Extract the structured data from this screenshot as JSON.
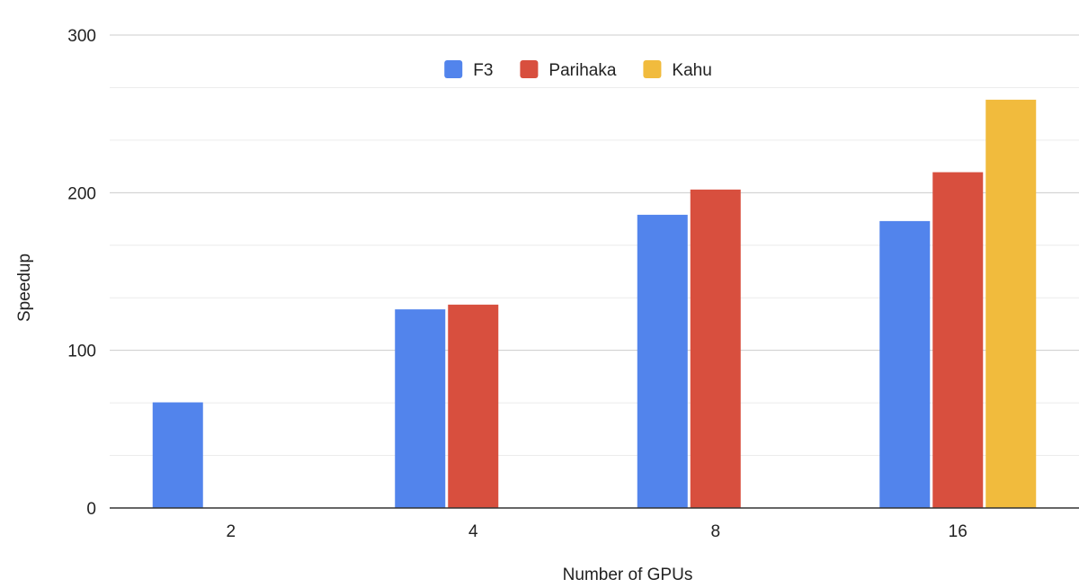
{
  "chart_data": {
    "type": "bar",
    "title": "",
    "xlabel": "Number of GPUs",
    "ylabel": "Speedup",
    "categories": [
      "2",
      "4",
      "8",
      "16"
    ],
    "ylim": [
      0,
      300
    ],
    "yticks": [
      0,
      100,
      200,
      300
    ],
    "minor_gridlines": true,
    "grid": true,
    "legend_position": "top-center",
    "series": [
      {
        "name": "F3",
        "color": "#5284ec",
        "values": [
          67,
          126,
          186,
          182
        ]
      },
      {
        "name": "Parihaka",
        "color": "#d84f3e",
        "values": [
          null,
          129,
          202,
          213
        ]
      },
      {
        "name": "Kahu",
        "color": "#f1bb3d",
        "values": [
          null,
          null,
          null,
          259
        ]
      }
    ]
  }
}
